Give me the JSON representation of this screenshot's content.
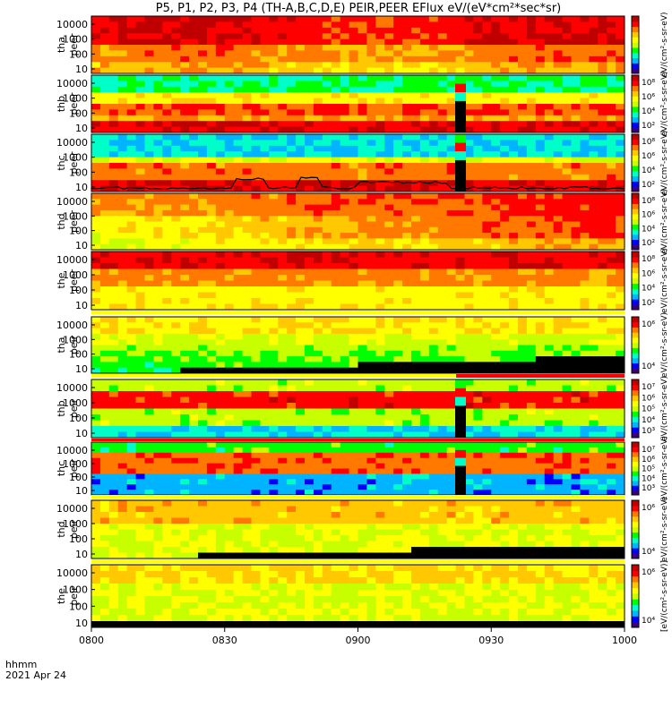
{
  "title": "P5, P1, P2, P3, P4 (TH-A,B,C,D,E) PEIR,PEER EFlux eV/(eV*cm²*sec*sr)",
  "footer": {
    "time_label": "hhmm",
    "date_label": "2021 Apr 24"
  },
  "colorscale": [
    "#3a007a",
    "#0000ff",
    "#00b4ff",
    "#00ffc8",
    "#00ff00",
    "#c8ff00",
    "#ffff00",
    "#ffc800",
    "#ff7800",
    "#ff0000",
    "#c00000"
  ],
  "chart_data": {
    "type": "heatmap",
    "x_ticks": [
      "0800",
      "0830",
      "0900",
      "0930",
      "1000"
    ],
    "y_ticks": [
      "10",
      "100",
      "1000",
      "10000"
    ],
    "panels": [
      {
        "label": "tha\npeer",
        "colorbar_ticks": [],
        "colorbar_unit": "eV/(cm²-s-sr-eV)"
      },
      {
        "label": "thb\npeer",
        "colorbar_ticks": [
          "10²",
          "10⁴",
          "10⁶",
          "10⁸"
        ],
        "colorbar_unit": "eV/(cm²-s-sr-eV)"
      },
      {
        "label": "thc\npeer",
        "colorbar_ticks": [
          "10²",
          "10⁴",
          "10⁶",
          "10⁸"
        ],
        "colorbar_unit": "eV/(cm²-s-sr-eV)"
      },
      {
        "label": "thd\npeer",
        "colorbar_ticks": [
          "10²",
          "10⁴",
          "10⁶",
          "10⁸"
        ],
        "colorbar_unit": "eV/(cm²-s-sr-eV)"
      },
      {
        "label": "the\npeer",
        "colorbar_ticks": [
          "10²",
          "10⁴",
          "10⁶",
          "10⁸"
        ],
        "colorbar_unit": "eV/(cm²-s-sr-eV)"
      },
      {
        "label": "tha\npeir",
        "colorbar_ticks": [
          "10⁴",
          "10⁶"
        ],
        "colorbar_unit": "eV/(cm²-s-sr-eV)"
      },
      {
        "label": "thb\npeir",
        "colorbar_ticks": [
          "10³",
          "10⁴",
          "10⁵",
          "10⁶",
          "10⁷"
        ],
        "colorbar_unit": "eV/(cm²-s-sr-eV)"
      },
      {
        "label": "thc\npeir",
        "colorbar_ticks": [
          "10³",
          "10⁴",
          "10⁵",
          "10⁶",
          "10⁷"
        ],
        "colorbar_unit": "eV/(cm²-s-sr-eV)"
      },
      {
        "label": "thd\npeir",
        "colorbar_ticks": [
          "10⁴",
          "10⁶"
        ],
        "colorbar_unit": "eV/(cm²-s-sr-eV)"
      },
      {
        "label": "the\npeir",
        "colorbar_ticks": [
          "10⁴",
          "10⁶"
        ],
        "colorbar_unit": "[eV/(cm²-s-sr-eV)]"
      }
    ]
  }
}
